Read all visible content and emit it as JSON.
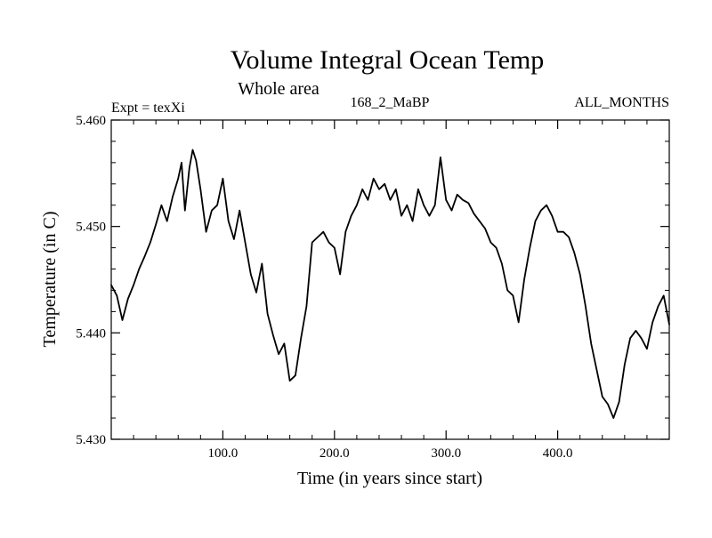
{
  "chart_data": {
    "type": "line",
    "title": "Volume Integral Ocean Temp",
    "subtitle": "Whole area",
    "annotations": {
      "left": "Expt = texXi",
      "center": "168_2_MaBP",
      "right": "ALL_MONTHS"
    },
    "xlabel": "Time (in years since start)",
    "ylabel": "Temperature (in C)",
    "xlim": [
      0,
      500
    ],
    "ylim": [
      5.43,
      5.46
    ],
    "xticks": [
      100,
      200,
      300,
      400
    ],
    "xtick_labels": [
      "100.0",
      "200.0",
      "300.0",
      "400.0"
    ],
    "yticks": [
      5.43,
      5.44,
      5.45,
      5.46
    ],
    "ytick_labels": [
      "5.430",
      "5.440",
      "5.450",
      "5.460"
    ],
    "grid": false,
    "series": [
      {
        "name": "texXi",
        "color": "#000000",
        "x": [
          0,
          5,
          10,
          15,
          20,
          25,
          30,
          35,
          40,
          45,
          50,
          55,
          60,
          63,
          66,
          70,
          73,
          76,
          80,
          85,
          90,
          95,
          100,
          105,
          110,
          115,
          120,
          125,
          130,
          135,
          140,
          145,
          150,
          155,
          160,
          165,
          170,
          175,
          180,
          185,
          190,
          195,
          200,
          205,
          210,
          215,
          220,
          225,
          230,
          235,
          240,
          245,
          250,
          255,
          260,
          265,
          270,
          275,
          280,
          285,
          290,
          295,
          300,
          305,
          310,
          315,
          320,
          325,
          330,
          335,
          340,
          345,
          350,
          355,
          360,
          365,
          370,
          375,
          380,
          385,
          390,
          395,
          400,
          405,
          410,
          415,
          420,
          425,
          430,
          435,
          440,
          445,
          450,
          455,
          460,
          465,
          470,
          475,
          480,
          485,
          490,
          495,
          500
        ],
        "values": [
          5.4445,
          5.4435,
          5.4412,
          5.4432,
          5.4445,
          5.446,
          5.4472,
          5.4485,
          5.4502,
          5.452,
          5.4505,
          5.4528,
          5.4545,
          5.456,
          5.4515,
          5.4555,
          5.4572,
          5.4562,
          5.4535,
          5.4495,
          5.4515,
          5.452,
          5.4545,
          5.4505,
          5.4488,
          5.4515,
          5.4485,
          5.4455,
          5.4438,
          5.4465,
          5.4418,
          5.4398,
          5.438,
          5.439,
          5.4355,
          5.436,
          5.4395,
          5.4425,
          5.4485,
          5.449,
          5.4495,
          5.4485,
          5.448,
          5.4455,
          5.4495,
          5.451,
          5.452,
          5.4535,
          5.4525,
          5.4545,
          5.4535,
          5.454,
          5.4525,
          5.4535,
          5.451,
          5.452,
          5.4505,
          5.4535,
          5.452,
          5.451,
          5.452,
          5.4565,
          5.4525,
          5.4515,
          5.453,
          5.4525,
          5.4522,
          5.4512,
          5.4505,
          5.4498,
          5.4485,
          5.448,
          5.4465,
          5.444,
          5.4435,
          5.441,
          5.445,
          5.448,
          5.4505,
          5.4515,
          5.452,
          5.451,
          5.4495,
          5.4495,
          5.449,
          5.4475,
          5.4455,
          5.4425,
          5.439,
          5.4365,
          5.434,
          5.4333,
          5.432,
          5.4335,
          5.437,
          5.4395,
          5.4402,
          5.4395,
          5.4385,
          5.441,
          5.4425,
          5.4435,
          5.4408
        ]
      }
    ]
  }
}
